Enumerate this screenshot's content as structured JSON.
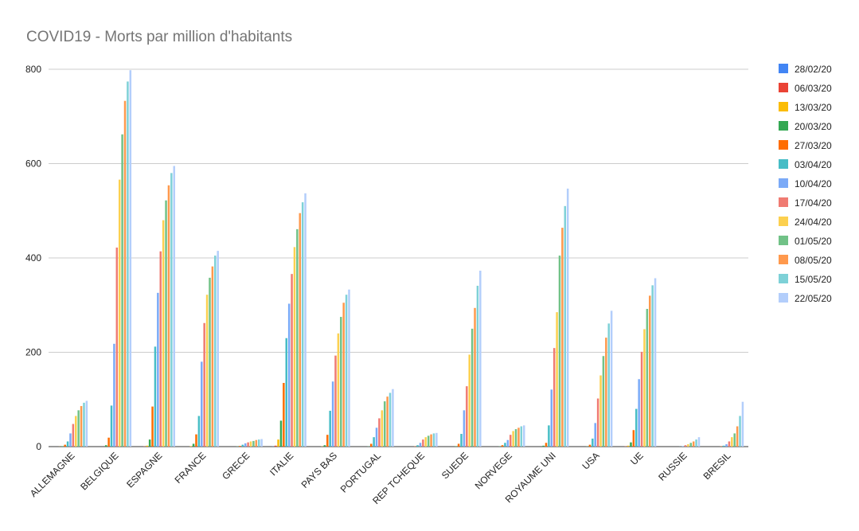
{
  "chart_data": {
    "type": "bar",
    "title": "COVID19 - Morts par million d'habitants",
    "xlabel": "",
    "ylabel": "",
    "ylim": [
      0,
      800
    ],
    "yticks": [
      "0",
      "200",
      "400",
      "600",
      "800"
    ],
    "grid": true,
    "legend_position": "right",
    "categories": [
      "ALLEMAGNE",
      "BELGIQUE",
      "ESPAGNE",
      "FRANCE",
      "GRECE",
      "ITALIE",
      "PAYS BAS",
      "PORTUGAL",
      "REP TCHEQUE",
      "SUEDE",
      "NORVEGE",
      "ROYAUME UNI",
      "USA",
      "UE",
      "RUSSIE",
      "BRESIL"
    ],
    "series": [
      {
        "name": "28/02/20",
        "color": "#4285f4",
        "values": [
          0,
          0,
          0,
          0,
          0,
          0.3,
          0,
          0,
          0,
          0,
          0,
          0,
          0,
          0,
          0,
          0
        ]
      },
      {
        "name": "06/03/20",
        "color": "#ea4335",
        "values": [
          0,
          0,
          0.5,
          0,
          0,
          2,
          0,
          0,
          0,
          0,
          0,
          0,
          0,
          0.5,
          0,
          0
        ]
      },
      {
        "name": "13/03/20",
        "color": "#fbbc04",
        "values": [
          0.2,
          0,
          2,
          1,
          0,
          15,
          0.5,
          0,
          0,
          0,
          0,
          0,
          0,
          2,
          0,
          0
        ]
      },
      {
        "name": "20/03/20",
        "color": "#34a853",
        "values": [
          1,
          3,
          15,
          6,
          0.5,
          55,
          3,
          0.5,
          0,
          1,
          0.5,
          2,
          0.5,
          9,
          0,
          0
        ]
      },
      {
        "name": "27/03/20",
        "color": "#ff6d01",
        "values": [
          4,
          19,
          85,
          26,
          1.5,
          135,
          25,
          6,
          0.5,
          6,
          3,
          8,
          4,
          35,
          0,
          0.5
        ]
      },
      {
        "name": "03/04/20",
        "color": "#46bdc6",
        "values": [
          11,
          87,
          212,
          65,
          4,
          230,
          76,
          20,
          3,
          27,
          8,
          45,
          17,
          80,
          0.2,
          2
        ]
      },
      {
        "name": "10/04/20",
        "color": "#7baaf7",
        "values": [
          28,
          218,
          326,
          180,
          7,
          303,
          138,
          40,
          8,
          77,
          14,
          121,
          50,
          143,
          1,
          5
        ]
      },
      {
        "name": "17/04/20",
        "color": "#f07b72",
        "values": [
          48,
          422,
          414,
          262,
          9,
          366,
          193,
          60,
          15,
          128,
          25,
          209,
          102,
          201,
          3,
          11
        ]
      },
      {
        "name": "24/04/20",
        "color": "#fcd04f",
        "values": [
          65,
          566,
          480,
          322,
          11,
          423,
          240,
          77,
          20,
          195,
          33,
          285,
          151,
          249,
          5,
          20
        ]
      },
      {
        "name": "01/05/20",
        "color": "#71c287",
        "values": [
          77,
          662,
          522,
          358,
          12,
          461,
          275,
          96,
          23,
          250,
          37,
          405,
          192,
          292,
          8,
          28
        ]
      },
      {
        "name": "08/05/20",
        "color": "#ff994d",
        "values": [
          86,
          733,
          554,
          382,
          14,
          495,
          305,
          106,
          26,
          294,
          40,
          464,
          231,
          320,
          11,
          43
        ]
      },
      {
        "name": "15/05/20",
        "color": "#7ed1d7",
        "values": [
          93,
          774,
          580,
          405,
          15,
          518,
          322,
          114,
          28,
          341,
          43,
          510,
          261,
          342,
          15,
          65
        ]
      },
      {
        "name": "22/05/20",
        "color": "#b3cefb",
        "values": [
          97,
          798,
          595,
          415,
          16,
          537,
          333,
          122,
          29,
          373,
          45,
          547,
          288,
          357,
          20,
          95
        ]
      }
    ]
  }
}
